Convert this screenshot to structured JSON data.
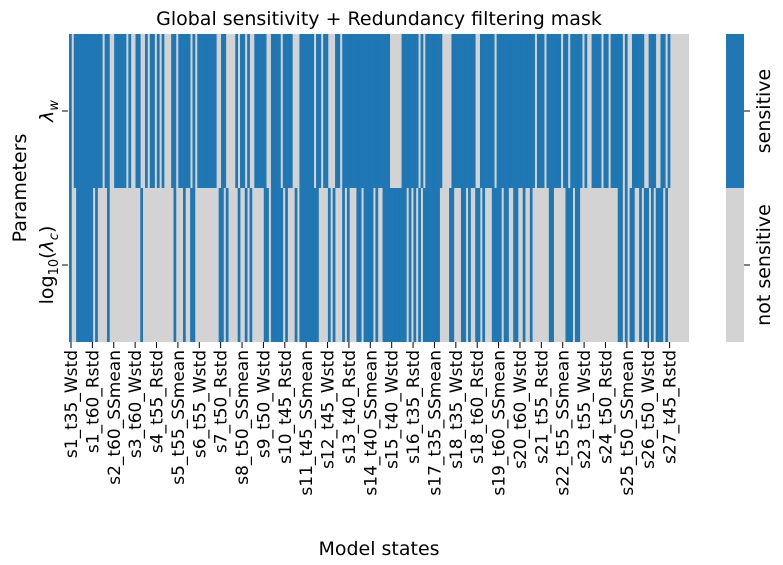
{
  "chart_data": {
    "type": "heatmap",
    "title": "Global sensitivity + Redundancy filtering mask",
    "xlabel": "Model states",
    "ylabel": "Parameters",
    "rows": [
      "λ_w",
      "log10(λ_c)"
    ],
    "x_tick_labels": [
      "s1_t35_Wstd",
      "s1_t60_Rstd",
      "s2_t60_SSmean",
      "s3_t60_Wstd",
      "s4_t55_Rstd",
      "s5_t55_SSmean",
      "s6_t55_Wstd",
      "s7_t50_Rstd",
      "s8_t50_SSmean",
      "s9_t50_Wstd",
      "s10_t45_Rstd",
      "s11_t45_SSmean",
      "s12_t45_Wstd",
      "s13_t40_Rstd",
      "s14_t40_SSmean",
      "s15_t40_Wstd",
      "s16_t35_Rstd",
      "s17_t35_SSmean",
      "s18_t35_Wstd",
      "s18_t60_Rstd",
      "s19_t60_SSmean",
      "s20_t60_Wstd",
      "s21_t55_Rstd",
      "s22_t55_SSmean",
      "s23_t55_Wstd",
      "s24_t50_Rstd",
      "s25_t50_SSmean",
      "s26_t50_Wstd",
      "s27_t45_Rstd"
    ],
    "n_columns": 261,
    "categories_legend": [
      "not sensitive",
      "sensitive"
    ],
    "colors": {
      "sensitive": "#1f77b4",
      "not_sensitive": "#d3d3d3"
    },
    "row_patterns": {
      "lambda_w": "1011111111111101100111110100110010110101000110111110101111111100110000101101001111100111101111000111111011011000110111111111111111111110000011111110101111111000011111111110011111101111111111111111011101111110110111110100111101101111101001111100111001101",
      "log10_lambda_c": "1001111111010000100000000000001000000000000010001001100000000001101000010010100000110111110100010111111110000101000101000110111101001111111111010101011111110000110001101001101000111101100110010010000000110000011101100000000000000001101011001011010111010"
    }
  }
}
